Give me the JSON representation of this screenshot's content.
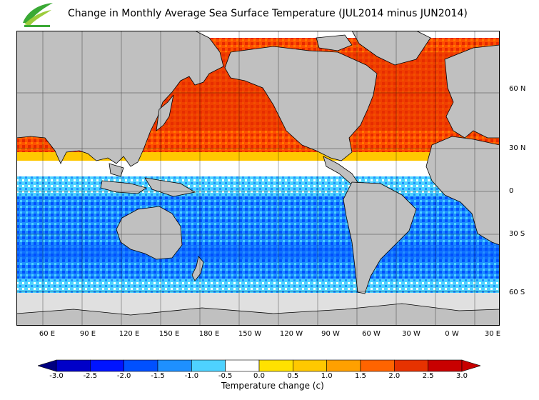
{
  "title": "Change in Monthly Average Sea Surface Temperature (JUL2014 minus JUN2014)",
  "logo": {
    "icon": "agency-logo-icon",
    "colors": [
      "#3aa935",
      "#9ccc3b"
    ]
  },
  "map": {
    "type": "global sea surface temperature change map",
    "projection": "cylindrical, centred on Pacific",
    "land_color": "#c0c0c0",
    "sea_ice_color": "#e0e0e0",
    "grid": true,
    "lat_labels": [
      "60 N",
      "30 N",
      "0",
      "30 S",
      "60 S"
    ],
    "lon_labels": [
      "60 E",
      "90 E",
      "120 E",
      "150 E",
      "180 E",
      "150 W",
      "120 W",
      "90 W",
      "60 W",
      "30 W",
      "0 W",
      "30 E"
    ]
  },
  "colorbar": {
    "label": "Temperature change  (c)",
    "ticks": [
      "-3.0",
      "-2.5",
      "-2.0",
      "-1.5",
      "-1.0",
      "-0.5",
      "0.0",
      "0.5",
      "1.0",
      "1.5",
      "2.0",
      "2.5",
      "3.0"
    ],
    "colors": [
      "#000080",
      "#0000c8",
      "#0014ff",
      "#0050ff",
      "#1e90ff",
      "#4ed2ff",
      "#ffffff",
      "#ffe100",
      "#ffc800",
      "#ffa000",
      "#ff6400",
      "#e63200",
      "#c80000"
    ]
  }
}
